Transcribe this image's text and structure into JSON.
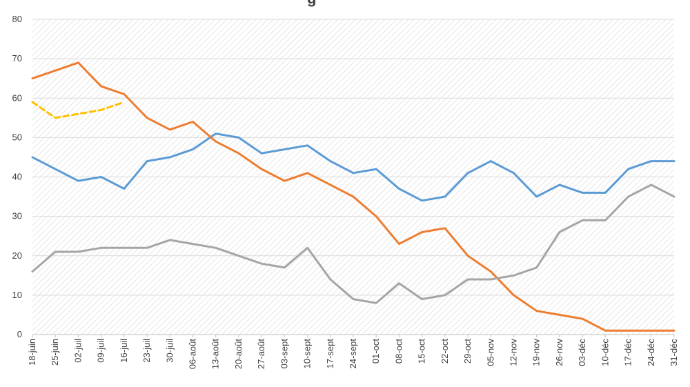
{
  "chart_data": {
    "type": "line",
    "title": "",
    "title_fragment": "g",
    "xlabel": "",
    "ylabel": "",
    "ylim": [
      0,
      80
    ],
    "yticks": [
      0,
      10,
      20,
      30,
      40,
      50,
      60,
      70,
      80
    ],
    "grid": true,
    "background": "diagonal-hatch",
    "legend": "none",
    "categories": [
      "18-juin",
      "25-juin",
      "02-juil",
      "09-juil",
      "16-juil",
      "23-juil",
      "30-juil",
      "06-août",
      "13-août",
      "20-août",
      "27-août",
      "03-sept",
      "10-sept",
      "17-sept",
      "24-sept",
      "01-oct",
      "08-oct",
      "15-oct",
      "22-oct",
      "29-oct",
      "05-nov",
      "12-nov",
      "19-nov",
      "26-nov",
      "03-déc",
      "10-déc",
      "17-déc",
      "24-déc",
      "31-déc"
    ],
    "series": [
      {
        "key": "blue",
        "color": "#5B9BD5",
        "dash": false,
        "values": [
          45,
          42,
          39,
          40,
          37,
          44,
          45,
          47,
          51,
          50,
          46,
          47,
          48,
          44,
          41,
          42,
          37,
          34,
          35,
          41,
          44,
          41,
          35,
          38,
          36,
          36,
          42,
          44,
          44
        ]
      },
      {
        "key": "orange",
        "color": "#ED7D31",
        "dash": false,
        "values": [
          65,
          67,
          69,
          63,
          61,
          55,
          52,
          54,
          49,
          46,
          42,
          39,
          41,
          38,
          35,
          30,
          23,
          26,
          27,
          20,
          16,
          10,
          6,
          5,
          4,
          1,
          1,
          1,
          1
        ]
      },
      {
        "key": "gray",
        "color": "#A5A5A5",
        "dash": false,
        "values": [
          16,
          21,
          21,
          22,
          22,
          22,
          24,
          23,
          22,
          20,
          18,
          17,
          22,
          14,
          9,
          8,
          13,
          9,
          10,
          14,
          14,
          15,
          17,
          26,
          29,
          29,
          35,
          38,
          35
        ]
      },
      {
        "key": "yellow",
        "color": "#FFC000",
        "dash": true,
        "values": [
          59,
          55,
          56,
          57,
          59,
          null,
          null,
          null,
          null,
          null,
          null,
          null,
          null,
          null,
          null,
          null,
          null,
          null,
          null,
          null,
          null,
          null,
          null,
          null,
          null,
          null,
          null,
          null,
          null
        ]
      }
    ]
  }
}
